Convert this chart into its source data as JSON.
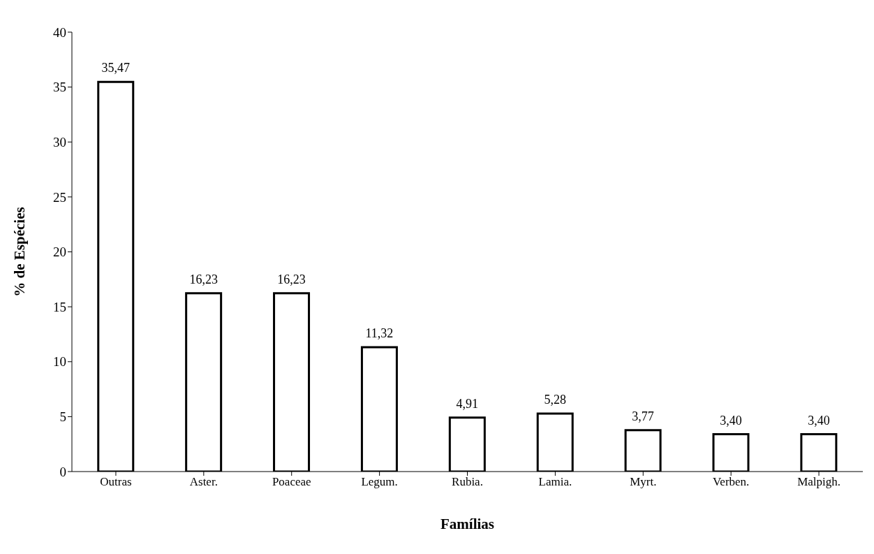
{
  "chart_data": {
    "type": "bar",
    "xlabel": "Famílias",
    "ylabel": "% de Espécies",
    "categories": [
      "Outras",
      "Aster.",
      "Poaceae",
      "Legum.",
      "Rubia.",
      "Lamia.",
      "Myrt.",
      "Verben.",
      "Malpigh."
    ],
    "values": [
      35.47,
      16.23,
      16.23,
      11.32,
      4.91,
      5.28,
      3.77,
      3.4,
      3.4
    ],
    "value_labels": [
      "35,47",
      "16,23",
      "16,23",
      "11,32",
      "4,91",
      "5,28",
      "3,77",
      "3,40",
      "3,40"
    ],
    "color": "#ffffff",
    "ylim": [
      0,
      40
    ],
    "yticks": [
      0,
      5,
      10,
      15,
      20,
      25,
      30,
      35,
      40
    ],
    "grid": false,
    "legend": false
  }
}
